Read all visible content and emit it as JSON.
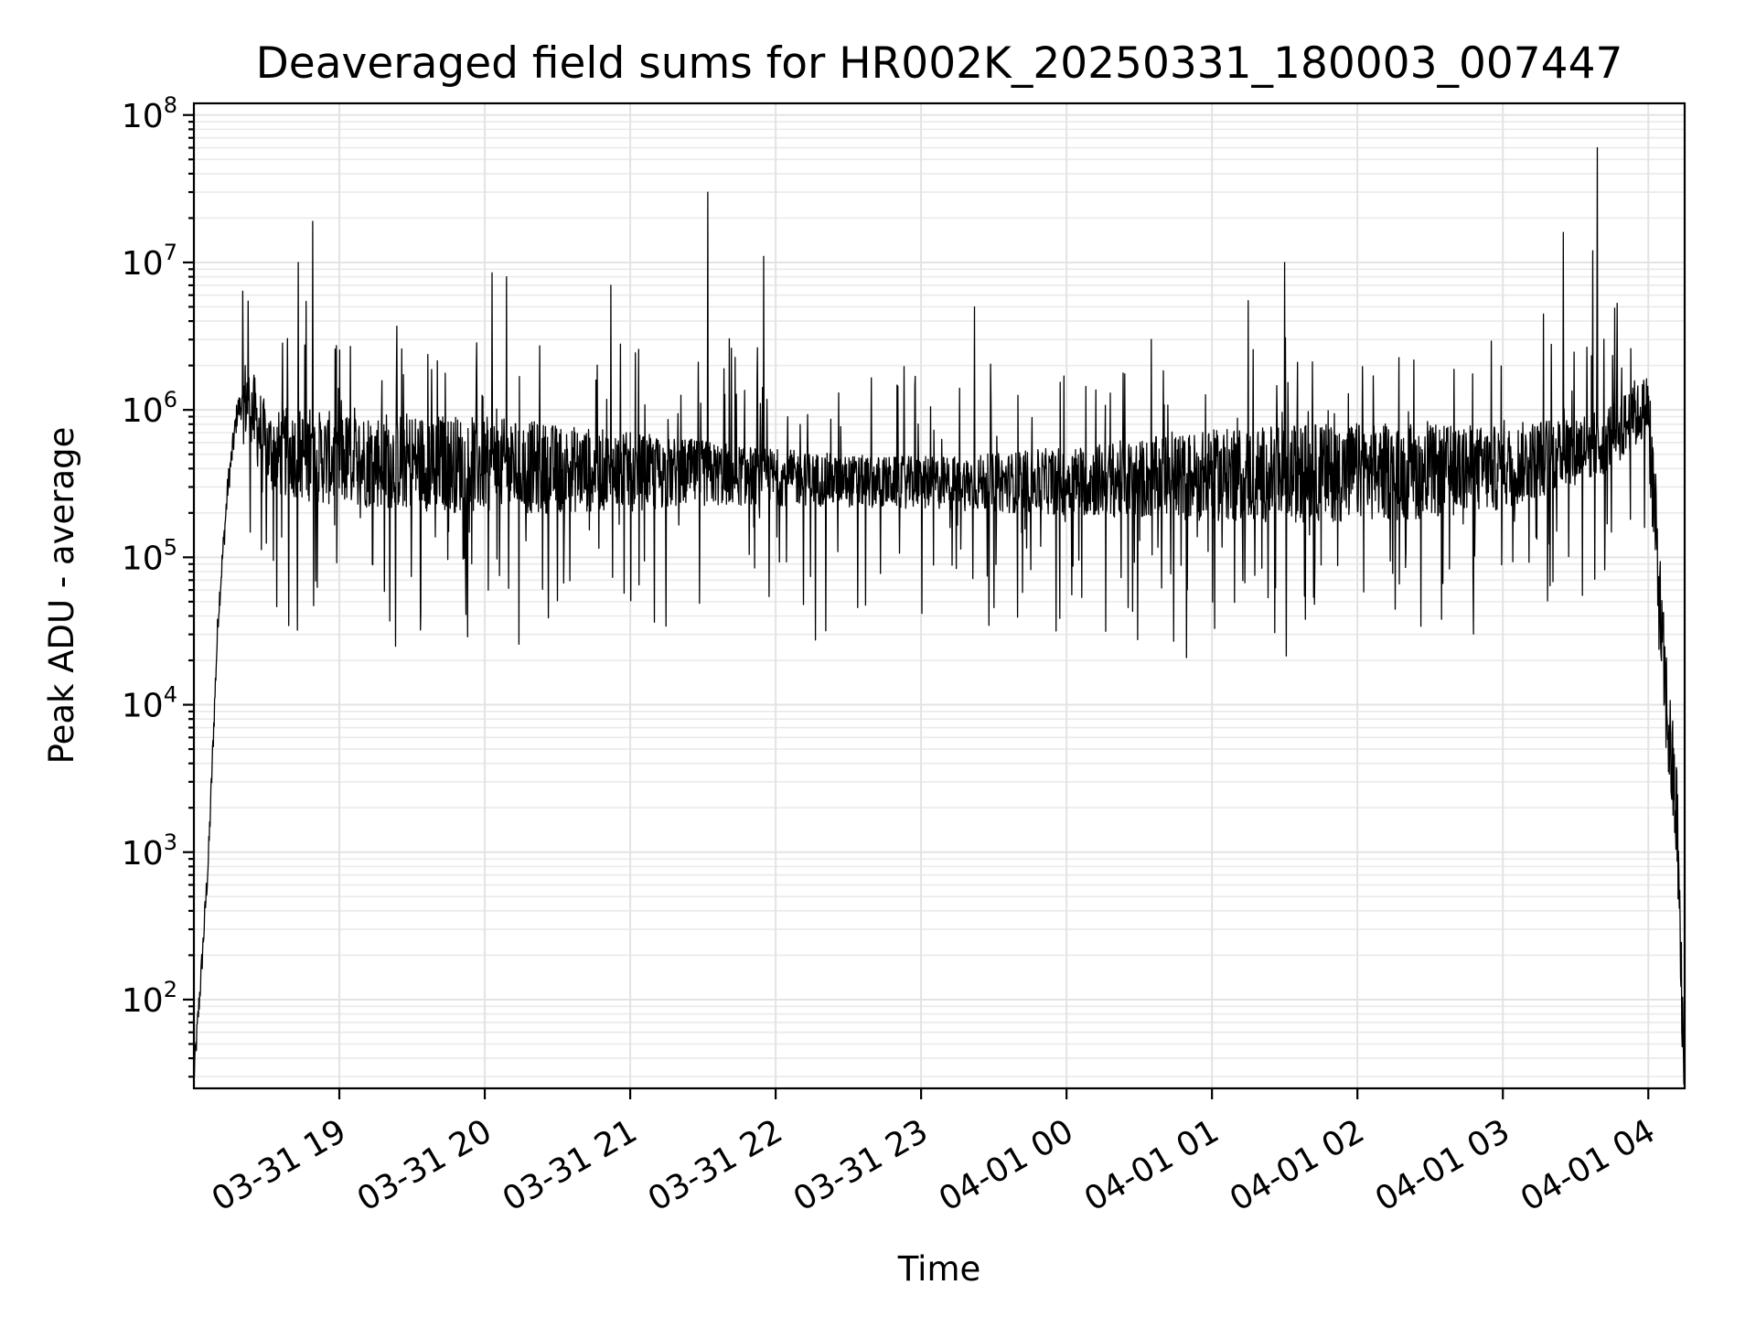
{
  "chart_data": {
    "type": "line",
    "title": "Deaveraged field sums for HR002K_20250331_180003_007447",
    "xlabel": "Time",
    "ylabel": "Peak ADU - average",
    "yscale": "log",
    "ylim": [
      25,
      120000000
    ],
    "xlim": [
      "2025-03-31T18:00:00",
      "2025-04-01T04:15:00"
    ],
    "grid": true,
    "x_tick_labels": [
      "03-31 19",
      "03-31 20",
      "03-31 21",
      "03-31 22",
      "03-31 23",
      "04-01 00",
      "04-01 01",
      "04-01 02",
      "04-01 03",
      "04-01 04"
    ],
    "y_tick_labels": [
      {
        "base": "10",
        "exp": "2"
      },
      {
        "base": "10",
        "exp": "3"
      },
      {
        "base": "10",
        "exp": "4"
      },
      {
        "base": "10",
        "exp": "5"
      },
      {
        "base": "10",
        "exp": "6"
      },
      {
        "base": "10",
        "exp": "7"
      },
      {
        "base": "10",
        "exp": "8"
      }
    ],
    "series": [
      {
        "color": "#000000",
        "x": [
          "2025-03-31T18:00:00",
          "2025-03-31T18:03:00",
          "2025-03-31T18:06:00",
          "2025-03-31T18:10:00",
          "2025-03-31T18:14:00",
          "2025-03-31T18:18:00",
          "2025-03-31T18:22:00",
          "2025-03-31T18:26:00",
          "2025-03-31T18:30:00",
          "2025-03-31T18:35:00",
          "2025-03-31T18:40:00",
          "2025-03-31T18:45:00",
          "2025-03-31T18:50:00",
          "2025-03-31T18:55:00",
          "2025-03-31T19:00:00",
          "2025-03-31T19:15:00",
          "2025-03-31T19:30:00",
          "2025-03-31T20:00:00",
          "2025-03-31T20:30:00",
          "2025-03-31T21:00:00",
          "2025-03-31T21:30:00",
          "2025-03-31T22:00:00",
          "2025-03-31T22:30:00",
          "2025-03-31T23:00:00",
          "2025-03-31T23:30:00",
          "2025-04-01T00:00:00",
          "2025-04-01T00:30:00",
          "2025-04-01T01:00:00",
          "2025-04-01T01:30:00",
          "2025-04-01T02:00:00",
          "2025-04-01T02:30:00",
          "2025-04-01T03:00:00",
          "2025-04-01T03:20:00",
          "2025-04-01T03:40:00",
          "2025-04-01T03:55:00",
          "2025-04-01T04:00:00",
          "2025-04-01T04:03:00",
          "2025-04-01T04:06:00",
          "2025-04-01T04:09:00",
          "2025-04-01T04:12:00",
          "2025-04-01T04:14:00"
        ],
        "y": [
          30,
          150,
          900,
          40000,
          300000,
          1000000,
          1200000,
          800000,
          550000,
          500000,
          520000,
          500000,
          480000,
          470000,
          460000,
          460000,
          450000,
          420000,
          400000,
          380000,
          370000,
          350000,
          330000,
          320000,
          320000,
          330000,
          340000,
          360000,
          370000,
          380000,
          380000,
          400000,
          500000,
          600000,
          900000,
          1100000,
          150000,
          20000,
          5000,
          1500,
          60
        ]
      }
    ],
    "spikes": [
      {
        "x": "2025-03-31T18:49:00",
        "y": 19000000
      },
      {
        "x": "2025-03-31T18:43:00",
        "y": 10000000
      },
      {
        "x": "2025-03-31T20:03:00",
        "y": 8500000
      },
      {
        "x": "2025-03-31T20:09:00",
        "y": 8000000
      },
      {
        "x": "2025-03-31T20:52:00",
        "y": 7000000
      },
      {
        "x": "2025-03-31T21:32:00",
        "y": 30000000
      },
      {
        "x": "2025-03-31T21:55:00",
        "y": 11000000
      },
      {
        "x": "2025-03-31T23:22:00",
        "y": 5000000
      },
      {
        "x": "2025-04-01T00:35:00",
        "y": 3000000
      },
      {
        "x": "2025-04-01T01:30:00",
        "y": 10000000
      },
      {
        "x": "2025-04-01T01:15:00",
        "y": 5500000
      },
      {
        "x": "2025-04-01T03:25:00",
        "y": 16000000
      },
      {
        "x": "2025-04-01T03:39:00",
        "y": 60000000
      },
      {
        "x": "2025-04-01T03:37:00",
        "y": 12000000
      }
    ]
  }
}
